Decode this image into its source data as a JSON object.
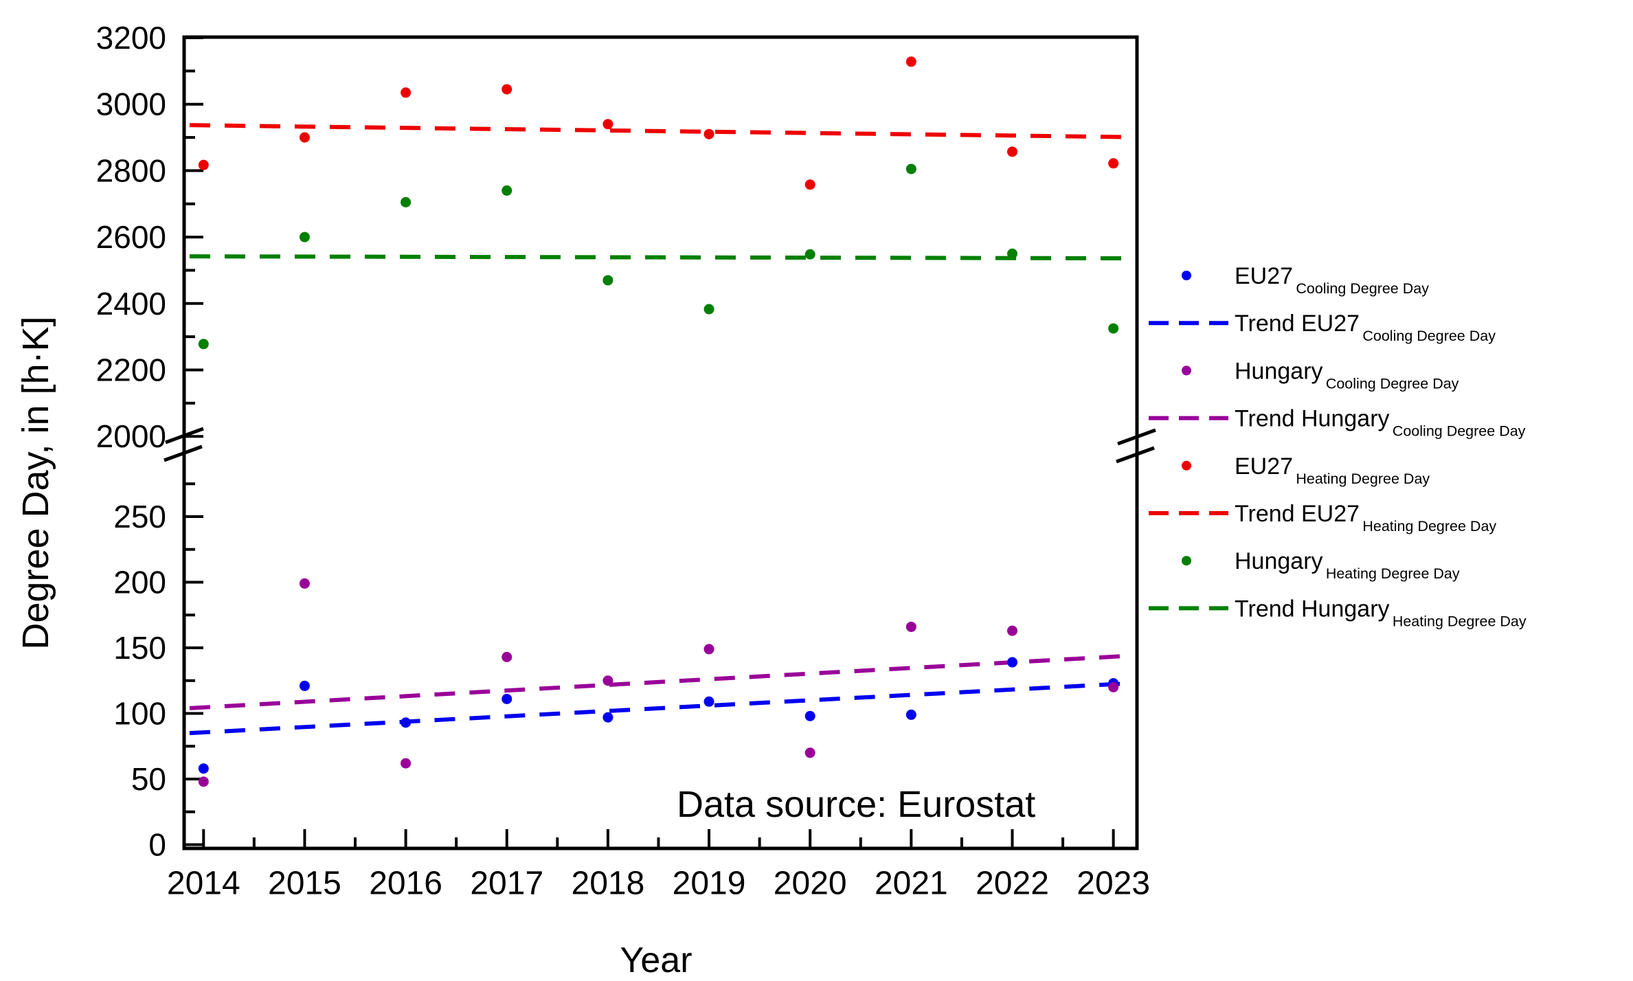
{
  "figure": {
    "y_axis_title": "Degree Day, in [h·K]",
    "x_axis_title": "Year",
    "annotation": "Data source: Eurostat"
  },
  "chart_data": {
    "type": "scatter",
    "title": "",
    "xlabel": "Year",
    "ylabel": "Degree Day, in [h·K]",
    "grid": false,
    "legend_position": "right",
    "axis_break": true,
    "x": [
      2014,
      2015,
      2016,
      2017,
      2018,
      2019,
      2020,
      2021,
      2022,
      2023
    ],
    "axes": {
      "x_major_ticks": [
        2014,
        2015,
        2016,
        2017,
        2018,
        2019,
        2020,
        2021,
        2022,
        2023
      ],
      "x_minor_ticks": [
        2014.5,
        2015.5,
        2016.5,
        2017.5,
        2018.5,
        2019.5,
        2020.5,
        2021.5,
        2022.5
      ],
      "y_upper_range": [
        2000,
        3200
      ],
      "y_lower_range": [
        0,
        295
      ],
      "y_upper_major_ticks": [
        3200,
        3000,
        2800,
        2600,
        2400,
        2200,
        2000
      ],
      "y_upper_minor_ticks": [
        3100,
        2900,
        2700,
        2500,
        2300,
        2100
      ],
      "y_lower_major_ticks": [
        250,
        200,
        150,
        100,
        50,
        0
      ],
      "y_lower_minor_ticks": [
        275,
        225,
        175,
        125,
        75,
        25
      ]
    },
    "series": [
      {
        "name": "EU27 Cooling Degree Day",
        "marker": "dot",
        "color": "#0000EE",
        "values": [
          58,
          121,
          93,
          111,
          97,
          109,
          98,
          99,
          139,
          123
        ]
      },
      {
        "name": "Hungary Cooling Degree Day",
        "marker": "dot",
        "color": "#990099",
        "values": [
          48,
          199,
          62,
          143,
          125,
          149,
          70,
          166,
          163,
          120
        ]
      },
      {
        "name": "EU27 Heating Degree Day",
        "marker": "dot",
        "color": "#EE0000",
        "values": [
          2817,
          2900,
          3035,
          3045,
          2940,
          2910,
          2758,
          3128,
          2857,
          2822
        ]
      },
      {
        "name": "Hungary Heating Degree Day",
        "marker": "dot",
        "color": "#008000",
        "values": [
          2278,
          2600,
          2705,
          2740,
          2470,
          2383,
          2548,
          2805,
          2550,
          2325
        ]
      }
    ],
    "trends": [
      {
        "name": "Trend EU27 Cooling Degree Day",
        "color": "#0000EE",
        "start": 85,
        "end": 123
      },
      {
        "name": "Trend Hungary Cooling Degree Day",
        "color": "#990099",
        "start": 104,
        "end": 144
      },
      {
        "name": "Trend EU27 Heating Degree Day",
        "color": "#EE0000",
        "start": 2937,
        "end": 2901
      },
      {
        "name": "Trend Hungary Heating Degree Day",
        "color": "#008000",
        "start": 2542,
        "end": 2536
      }
    ]
  },
  "legend": {
    "items": [
      {
        "label": "EU27",
        "subscript": "Cooling Degree Day",
        "marker": "dot",
        "color": "#0000EE"
      },
      {
        "label": "Trend EU27",
        "subscript": "Cooling Degree Day",
        "marker": "dash",
        "color": "#0000EE"
      },
      {
        "label": "Hungary",
        "subscript": "Cooling Degree Day",
        "marker": "dot",
        "color": "#990099"
      },
      {
        "label": "Trend Hungary",
        "subscript": "Cooling Degree Day",
        "marker": "dash",
        "color": "#990099"
      },
      {
        "label": "EU27",
        "subscript": "Heating Degree Day",
        "marker": "dot",
        "color": "#EE0000"
      },
      {
        "label": "Trend EU27",
        "subscript": "Heating Degree Day",
        "marker": "dash",
        "color": "#EE0000"
      },
      {
        "label": "Hungary",
        "subscript": "Heating Degree Day",
        "marker": "dot",
        "color": "#008000"
      },
      {
        "label": "Trend Hungary",
        "subscript": "Heating Degree Day",
        "marker": "dash",
        "color": "#008000"
      }
    ]
  }
}
